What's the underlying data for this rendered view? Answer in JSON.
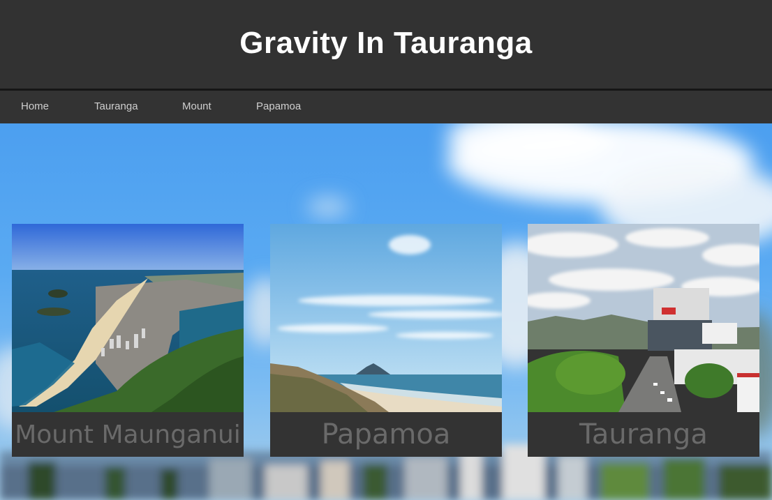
{
  "site": {
    "title": "Gravity In Tauranga"
  },
  "nav": {
    "items": [
      {
        "label": "Home"
      },
      {
        "label": "Tauranga"
      },
      {
        "label": "Mount"
      },
      {
        "label": "Papamoa"
      }
    ]
  },
  "cards": [
    {
      "caption": "Mount Maunganui"
    },
    {
      "caption": "Papamoa"
    },
    {
      "caption": "Tauranga"
    }
  ],
  "colors": {
    "header_bg": "#323232",
    "nav_bg": "#333333",
    "title_text": "#ffffff",
    "nav_text": "#cfcfcf",
    "caption_text": "#6a6a6a",
    "sky": "#5aaaf2"
  }
}
